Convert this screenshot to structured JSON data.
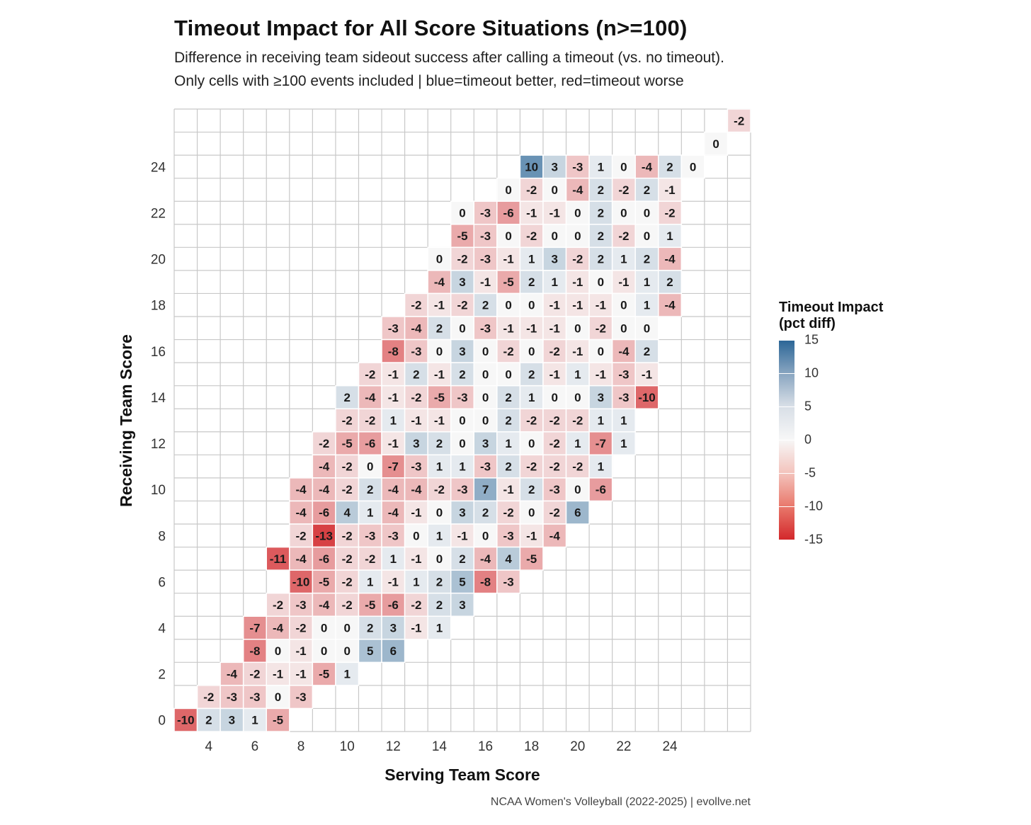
{
  "title": "Timeout Impact for All Score Situations (n>=100)",
  "subtitle_1": "Difference in receiving team sideout success after calling a timeout (vs. no timeout).",
  "subtitle_2": "Only cells with ≥100 events included | blue=timeout better, red=timeout worse",
  "caption": "NCAA Women's Volleyball (2022-2025) | evollve.net",
  "legend": {
    "title_line1": "Timeout Impact",
    "title_line2": "(pct diff)",
    "ticks": [
      15,
      10,
      5,
      0,
      -5,
      -10,
      -15
    ]
  },
  "colors": {
    "high": "#2a6596",
    "mid": "#f7f7f7",
    "low": "#d3282b",
    "grid": "#c8c8c8"
  },
  "chart_data": {
    "type": "heatmap",
    "title": "Timeout Impact for All Score Situations (n>=100)",
    "xlabel": "Serving Team Score",
    "ylabel": "Receiving Team Score",
    "x_ticks": [
      4,
      6,
      8,
      10,
      12,
      14,
      16,
      18,
      20,
      22,
      24
    ],
    "y_ticks": [
      0,
      2,
      4,
      6,
      8,
      10,
      12,
      14,
      16,
      18,
      20,
      22,
      24
    ],
    "x_range": [
      3,
      27
    ],
    "y_range": [
      0,
      26
    ],
    "color_range": [
      -15,
      15
    ],
    "rows": [
      {
        "y": 26,
        "x_start": 27,
        "values": [
          -2
        ]
      },
      {
        "y": 25,
        "x_start": 26,
        "values": [
          0
        ]
      },
      {
        "y": 24,
        "x_start": 18,
        "values": [
          10,
          3,
          -3,
          1,
          0,
          -4,
          2,
          0
        ]
      },
      {
        "y": 23,
        "x_start": 17,
        "values": [
          0,
          -2,
          0,
          -4,
          2,
          -2,
          2,
          -1
        ]
      },
      {
        "y": 22,
        "x_start": 15,
        "values": [
          0,
          -3,
          -6,
          -1,
          -1,
          0,
          2,
          0,
          0,
          -2
        ]
      },
      {
        "y": 21,
        "x_start": 15,
        "values": [
          -5,
          -3,
          0,
          -2,
          0,
          0,
          2,
          -2,
          0,
          1
        ]
      },
      {
        "y": 20,
        "x_start": 14,
        "values": [
          0,
          -2,
          -3,
          -1,
          1,
          3,
          -2,
          2,
          1,
          2,
          -4
        ]
      },
      {
        "y": 19,
        "x_start": 14,
        "values": [
          -4,
          3,
          -1,
          -5,
          2,
          1,
          -1,
          0,
          -1,
          1,
          2
        ]
      },
      {
        "y": 18,
        "x_start": 13,
        "values": [
          -2,
          -1,
          -2,
          2,
          0,
          0,
          -1,
          -1,
          -1,
          0,
          1,
          -4
        ]
      },
      {
        "y": 17,
        "x_start": 12,
        "values": [
          -3,
          -4,
          2,
          0,
          -3,
          -1,
          -1,
          -1,
          0,
          -2,
          0,
          0
        ]
      },
      {
        "y": 16,
        "x_start": 12,
        "values": [
          -8,
          -3,
          0,
          3,
          0,
          -2,
          0,
          -2,
          -1,
          0,
          -4,
          2
        ]
      },
      {
        "y": 15,
        "x_start": 11,
        "values": [
          -2,
          -1,
          2,
          -1,
          2,
          0,
          0,
          2,
          -1,
          1,
          -1,
          -3,
          -1
        ]
      },
      {
        "y": 14,
        "x_start": 10,
        "values": [
          2,
          -4,
          -1,
          -2,
          -5,
          -3,
          0,
          2,
          1,
          0,
          0,
          3,
          -3,
          -10
        ]
      },
      {
        "y": 13,
        "x_start": 10,
        "values": [
          -2,
          -2,
          1,
          -1,
          -1,
          0,
          0,
          2,
          -2,
          -2,
          -2,
          1,
          1
        ]
      },
      {
        "y": 12,
        "x_start": 9,
        "values": [
          -2,
          -5,
          -6,
          -1,
          3,
          2,
          0,
          3,
          1,
          0,
          -2,
          1,
          -7,
          1
        ]
      },
      {
        "y": 11,
        "x_start": 9,
        "values": [
          -4,
          -2,
          0,
          -7,
          -3,
          1,
          1,
          -3,
          2,
          -2,
          -2,
          -2,
          1
        ]
      },
      {
        "y": 10,
        "x_start": 8,
        "values": [
          -4,
          -4,
          -2,
          2,
          -4,
          -4,
          -2,
          -3,
          7,
          -1,
          2,
          -3,
          0,
          -6
        ]
      },
      {
        "y": 9,
        "x_start": 8,
        "values": [
          -4,
          -6,
          4,
          1,
          -4,
          -1,
          0,
          3,
          2,
          -2,
          0,
          -2,
          6
        ]
      },
      {
        "y": 8,
        "x_start": 8,
        "values": [
          -2,
          -13,
          -2,
          -3,
          -3,
          0,
          1,
          -1,
          0,
          -3,
          -1,
          -4
        ]
      },
      {
        "y": 7,
        "x_start": 7,
        "values": [
          -11,
          -4,
          -6,
          -2,
          -2,
          1,
          -1,
          0,
          2,
          -4,
          4,
          -5
        ]
      },
      {
        "y": 6,
        "x_start": 8,
        "values": [
          -10,
          -5,
          -2,
          1,
          -1,
          1,
          2,
          5,
          -8,
          -3
        ]
      },
      {
        "y": 5,
        "x_start": 7,
        "values": [
          -2,
          -3,
          -4,
          -2,
          -5,
          -6,
          -2,
          2,
          3
        ]
      },
      {
        "y": 4,
        "x_start": 6,
        "values": [
          -7,
          -4,
          -2,
          0,
          0,
          2,
          3,
          -1,
          1
        ]
      },
      {
        "y": 3,
        "x_start": 6,
        "values": [
          -8,
          0,
          -1,
          0,
          0,
          5,
          6
        ]
      },
      {
        "y": 2,
        "x_start": 5,
        "values": [
          -4,
          -2,
          -1,
          -1,
          -5,
          1
        ]
      },
      {
        "y": 1,
        "x_start": 4,
        "values": [
          -2,
          -3,
          -3,
          0,
          -3
        ]
      },
      {
        "y": 0,
        "x_start": 3,
        "values": [
          -10,
          2,
          3,
          1,
          -5
        ]
      }
    ]
  }
}
